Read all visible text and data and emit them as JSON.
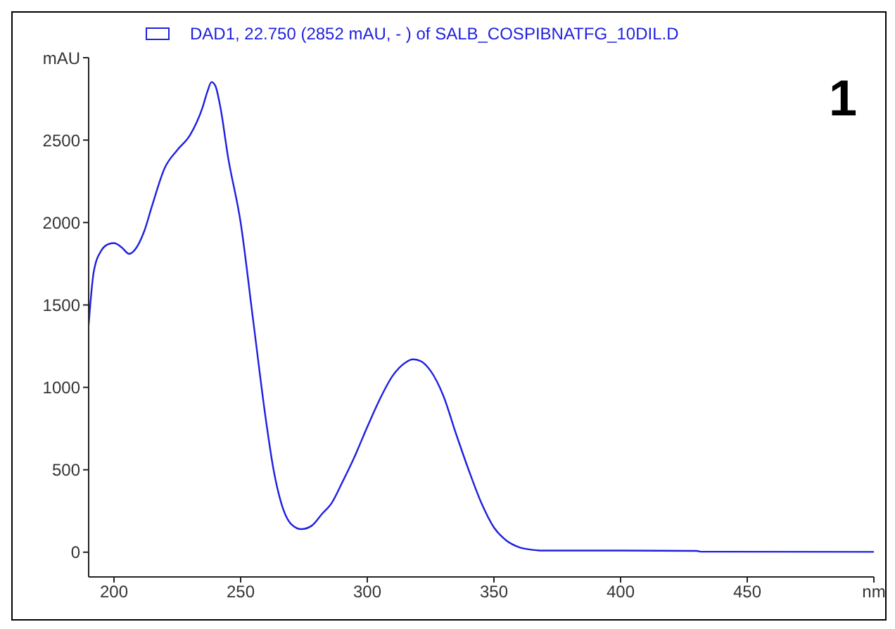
{
  "chart_data": {
    "type": "line",
    "x": [
      190,
      192,
      195,
      198,
      200,
      203,
      206,
      208,
      212,
      215,
      220,
      225,
      230,
      235,
      237,
      238.5,
      240,
      242,
      245,
      250,
      255,
      260,
      263,
      266,
      270,
      274,
      278,
      282,
      286,
      290,
      295,
      300,
      305,
      310,
      315,
      318,
      321,
      325,
      330,
      335,
      340,
      345,
      350,
      355,
      360,
      365,
      370,
      400,
      430,
      432,
      500
    ],
    "series": [
      {
        "name": "DAD1, 22.750 (2852 mAU, - ) of SALB_COSPIBNATFG_10DIL.D",
        "color": "#1f1fe0",
        "values": [
          1380,
          1700,
          1830,
          1870,
          1875,
          1850,
          1810,
          1830,
          1950,
          2100,
          2330,
          2440,
          2530,
          2700,
          2800,
          2852,
          2830,
          2700,
          2400,
          2000,
          1400,
          800,
          500,
          300,
          170,
          140,
          160,
          230,
          300,
          420,
          580,
          760,
          930,
          1070,
          1150,
          1170,
          1160,
          1100,
          950,
          720,
          500,
          300,
          150,
          70,
          30,
          15,
          10,
          10,
          8,
          3,
          2
        ]
      }
    ],
    "xlim": [
      190,
      500
    ],
    "xticks": [
      200,
      250,
      300,
      350,
      400,
      450,
      {
        "value": 500,
        "label": "nm"
      }
    ],
    "ylim": [
      -150,
      3000
    ],
    "yticks": [
      0,
      500,
      1000,
      1500,
      2000,
      2500,
      {
        "value": 3000,
        "label": "mAU"
      }
    ],
    "legend": "top",
    "marker": "none",
    "line_style": "solid",
    "annotations": [
      "1"
    ]
  }
}
